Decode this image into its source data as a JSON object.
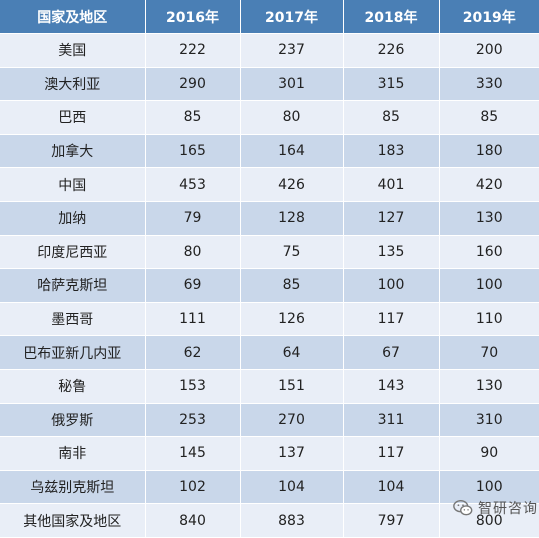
{
  "chart_data": {
    "type": "table",
    "columns": [
      "国家及地区",
      "2016年",
      "2017年",
      "2018年",
      "2019年"
    ],
    "rows": [
      {
        "name": "美国",
        "values": [
          222,
          237,
          226,
          200
        ]
      },
      {
        "name": "澳大利亚",
        "values": [
          290,
          301,
          315,
          330
        ]
      },
      {
        "name": "巴西",
        "values": [
          85,
          80,
          85,
          85
        ]
      },
      {
        "name": "加拿大",
        "values": [
          165,
          164,
          183,
          180
        ]
      },
      {
        "name": "中国",
        "values": [
          453,
          426,
          401,
          420
        ]
      },
      {
        "name": "加纳",
        "values": [
          79,
          128,
          127,
          130
        ]
      },
      {
        "name": "印度尼西亚",
        "values": [
          80,
          75,
          135,
          160
        ]
      },
      {
        "name": "哈萨克斯坦",
        "values": [
          69,
          85,
          100,
          100
        ]
      },
      {
        "name": "墨西哥",
        "values": [
          111,
          126,
          117,
          110
        ]
      },
      {
        "name": "巴布亚新几内亚",
        "values": [
          62,
          64,
          67,
          70
        ]
      },
      {
        "name": "秘鲁",
        "values": [
          153,
          151,
          143,
          130
        ]
      },
      {
        "name": "俄罗斯",
        "values": [
          253,
          270,
          311,
          310
        ]
      },
      {
        "name": "南非",
        "values": [
          145,
          137,
          117,
          90
        ]
      },
      {
        "name": "乌兹别克斯坦",
        "values": [
          102,
          104,
          104,
          100
        ]
      },
      {
        "name": "其他国家及地区",
        "values": [
          840,
          883,
          797,
          800
        ]
      }
    ]
  },
  "colors": {
    "header_bg": "#4a7fb5",
    "row_light": "#e9eef7",
    "row_dark": "#c9d7ea"
  },
  "watermark": {
    "icon": "wechat-icon",
    "text": "智研咨询"
  }
}
